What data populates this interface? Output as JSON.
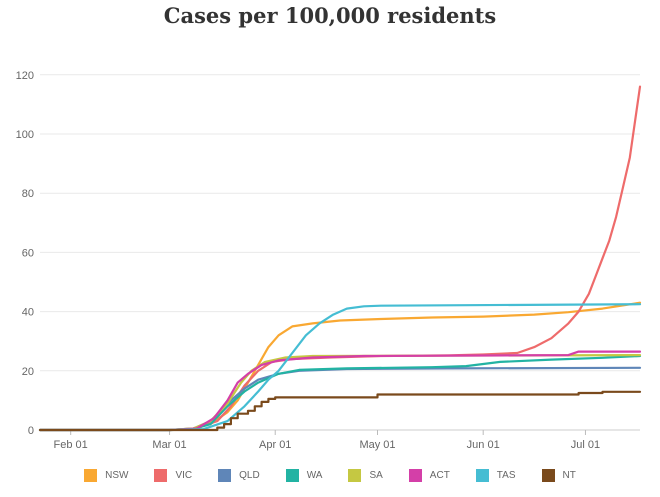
{
  "chart_data": {
    "type": "line",
    "title": "Cases per 100,000 residents",
    "xlabel": "",
    "ylabel": "",
    "x_start_day": 0,
    "x_end_day": 176,
    "ylim": [
      0,
      125
    ],
    "yticks": [
      0,
      20,
      40,
      60,
      80,
      100,
      120
    ],
    "xticks": [
      {
        "day": 9,
        "label": "Feb 01"
      },
      {
        "day": 38,
        "label": "Mar 01"
      },
      {
        "day": 69,
        "label": "Apr 01"
      },
      {
        "day": 99,
        "label": "May 01"
      },
      {
        "day": 130,
        "label": "Jun 01"
      },
      {
        "day": 160,
        "label": "Jul 01"
      }
    ],
    "x_day_note": "day 0 = Jan 23",
    "series": [
      {
        "name": "NSW",
        "color": "#f9a832",
        "step": false,
        "points": [
          [
            0,
            0
          ],
          [
            38,
            0
          ],
          [
            45,
            0.5
          ],
          [
            50,
            2
          ],
          [
            55,
            6
          ],
          [
            58,
            10
          ],
          [
            61,
            16
          ],
          [
            64,
            22
          ],
          [
            67,
            28
          ],
          [
            70,
            32
          ],
          [
            74,
            35
          ],
          [
            80,
            36
          ],
          [
            88,
            37
          ],
          [
            100,
            37.5
          ],
          [
            115,
            38
          ],
          [
            130,
            38.3
          ],
          [
            145,
            39
          ],
          [
            155,
            39.8
          ],
          [
            165,
            41
          ],
          [
            176,
            43
          ]
        ]
      },
      {
        "name": "VIC",
        "color": "#ee6b6b",
        "step": false,
        "points": [
          [
            0,
            0
          ],
          [
            38,
            0
          ],
          [
            45,
            0.3
          ],
          [
            52,
            3
          ],
          [
            56,
            8
          ],
          [
            60,
            15
          ],
          [
            64,
            20
          ],
          [
            68,
            23
          ],
          [
            74,
            24
          ],
          [
            85,
            24.5
          ],
          [
            100,
            25
          ],
          [
            120,
            25.2
          ],
          [
            130,
            25.5
          ],
          [
            140,
            26
          ],
          [
            145,
            28
          ],
          [
            150,
            31
          ],
          [
            155,
            36
          ],
          [
            158,
            40
          ],
          [
            161,
            46
          ],
          [
            163,
            52
          ],
          [
            165,
            58
          ],
          [
            167,
            64
          ],
          [
            169,
            72
          ],
          [
            171,
            82
          ],
          [
            173,
            92
          ],
          [
            174,
            100
          ],
          [
            175,
            108
          ],
          [
            176,
            116
          ]
        ]
      },
      {
        "name": "QLD",
        "color": "#5f86b8",
        "step": false,
        "points": [
          [
            0,
            0
          ],
          [
            38,
            0
          ],
          [
            45,
            0.5
          ],
          [
            50,
            3
          ],
          [
            55,
            9
          ],
          [
            60,
            14
          ],
          [
            64,
            17
          ],
          [
            70,
            19
          ],
          [
            76,
            20
          ],
          [
            90,
            20.6
          ],
          [
            120,
            20.8
          ],
          [
            176,
            21
          ]
        ]
      },
      {
        "name": "WA",
        "color": "#22b3a3",
        "step": false,
        "points": [
          [
            0,
            0
          ],
          [
            38,
            0
          ],
          [
            45,
            0.3
          ],
          [
            50,
            2
          ],
          [
            55,
            8
          ],
          [
            60,
            13
          ],
          [
            64,
            16
          ],
          [
            70,
            19
          ],
          [
            76,
            20.3
          ],
          [
            90,
            20.8
          ],
          [
            115,
            21.2
          ],
          [
            125,
            21.6
          ],
          [
            135,
            23
          ],
          [
            150,
            23.8
          ],
          [
            165,
            24.4
          ],
          [
            176,
            25
          ]
        ]
      },
      {
        "name": "SA",
        "color": "#c5c842",
        "step": false,
        "points": [
          [
            0,
            0
          ],
          [
            38,
            0
          ],
          [
            45,
            0.5
          ],
          [
            50,
            3
          ],
          [
            55,
            9
          ],
          [
            59,
            16
          ],
          [
            62,
            20
          ],
          [
            66,
            23
          ],
          [
            72,
            24.5
          ],
          [
            80,
            25
          ],
          [
            176,
            25.3
          ]
        ]
      },
      {
        "name": "ACT",
        "color": "#d43fa8",
        "step": false,
        "points": [
          [
            0,
            0
          ],
          [
            38,
            0
          ],
          [
            46,
            0.5
          ],
          [
            51,
            4
          ],
          [
            55,
            10
          ],
          [
            58,
            16
          ],
          [
            61,
            19
          ],
          [
            65,
            22
          ],
          [
            70,
            23.5
          ],
          [
            80,
            24.5
          ],
          [
            95,
            25
          ],
          [
            155,
            25.3
          ],
          [
            158,
            26.5
          ],
          [
            176,
            26.5
          ]
        ]
      },
      {
        "name": "TAS",
        "color": "#45bdd3",
        "step": false,
        "points": [
          [
            0,
            0
          ],
          [
            38,
            0
          ],
          [
            48,
            0.3
          ],
          [
            55,
            3
          ],
          [
            60,
            8
          ],
          [
            64,
            13
          ],
          [
            67,
            17
          ],
          [
            70,
            20
          ],
          [
            74,
            26
          ],
          [
            78,
            32
          ],
          [
            82,
            36
          ],
          [
            86,
            39
          ],
          [
            90,
            41
          ],
          [
            95,
            41.8
          ],
          [
            100,
            42
          ],
          [
            176,
            42.5
          ]
        ]
      },
      {
        "name": "NT",
        "color": "#7a4a1c",
        "step": true,
        "points": [
          [
            0,
            0
          ],
          [
            50,
            0
          ],
          [
            52,
            0.8
          ],
          [
            54,
            2
          ],
          [
            56,
            4
          ],
          [
            58,
            5.5
          ],
          [
            61,
            6.5
          ],
          [
            63,
            8
          ],
          [
            65,
            9.5
          ],
          [
            67,
            10.5
          ],
          [
            69,
            11
          ],
          [
            99,
            11
          ],
          [
            99,
            12
          ],
          [
            158,
            12
          ],
          [
            158,
            12.5
          ],
          [
            165,
            12.5
          ],
          [
            165,
            12.9
          ],
          [
            176,
            12.9
          ]
        ]
      }
    ]
  }
}
